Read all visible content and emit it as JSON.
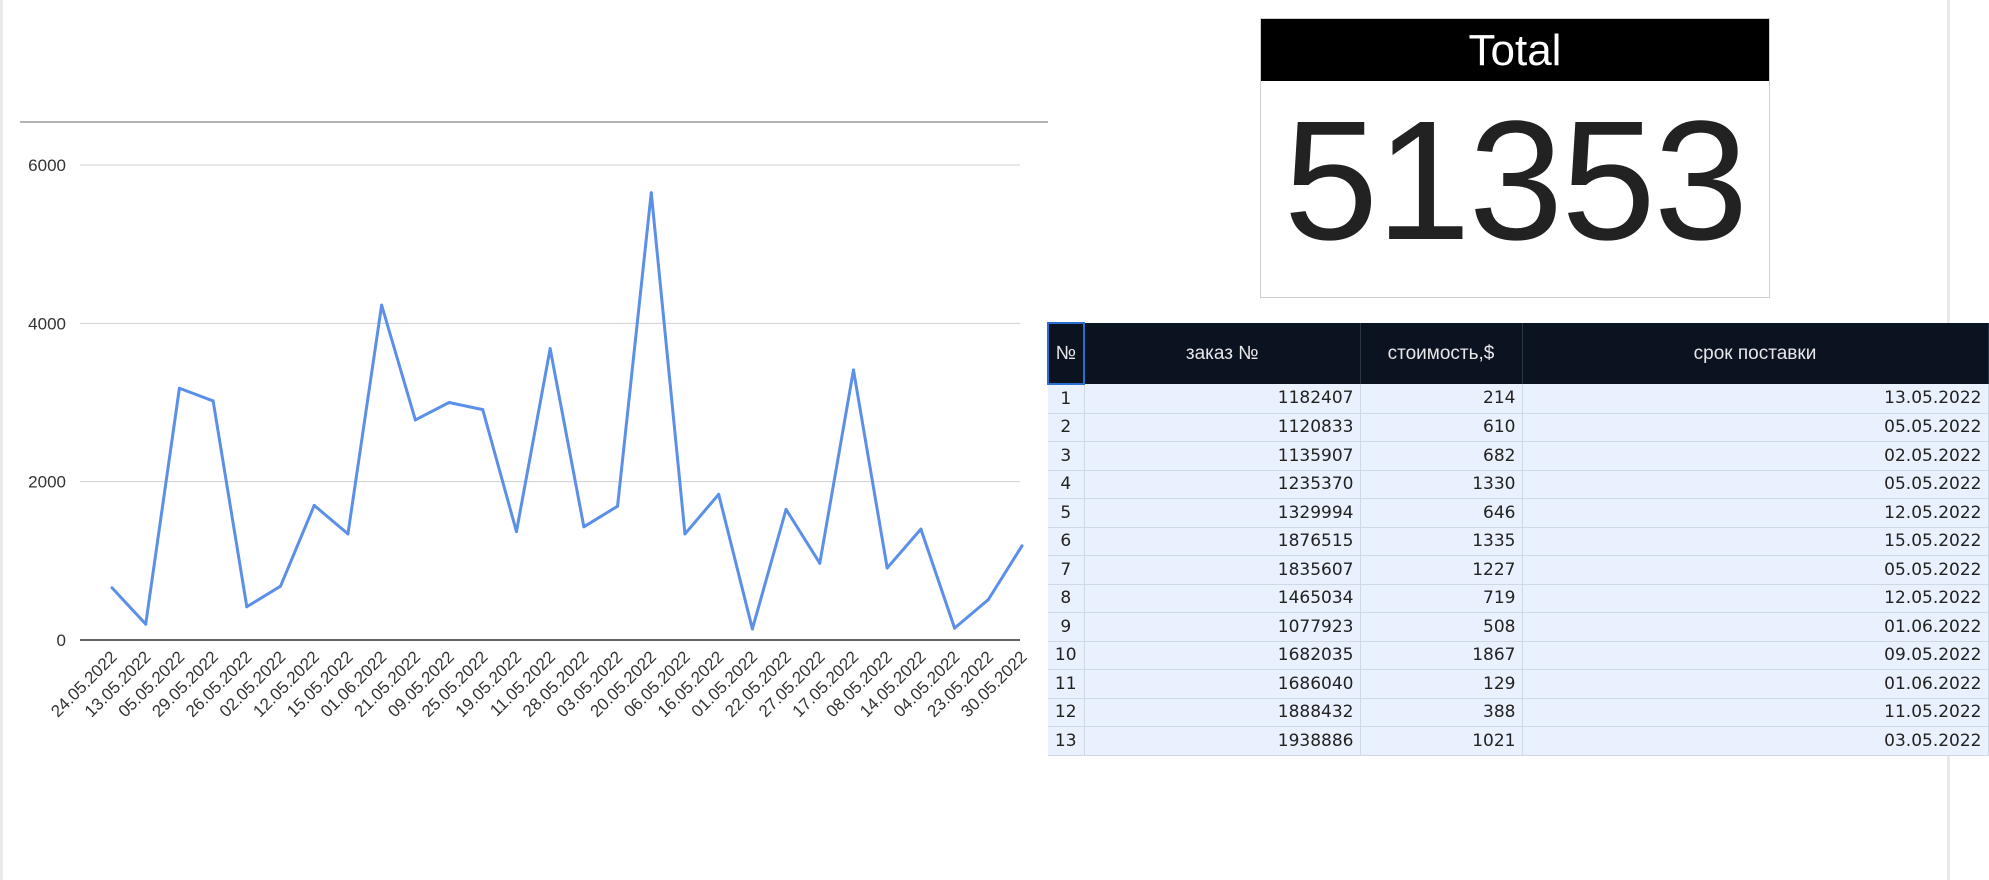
{
  "chart_data": {
    "type": "line",
    "categories": [
      "24.05.2022",
      "13.05.2022",
      "05.05.2022",
      "29.05.2022",
      "26.05.2022",
      "02.05.2022",
      "12.05.2022",
      "15.05.2022",
      "01.06.2022",
      "21.05.2022",
      "09.05.2022",
      "25.05.2022",
      "19.05.2022",
      "11.05.2022",
      "28.05.2022",
      "03.05.2022",
      "20.05.2022",
      "06.05.2022",
      "16.05.2022",
      "01.05.2022",
      "22.05.2022",
      "27.05.2022",
      "17.05.2022",
      "08.05.2022",
      "14.05.2022",
      "04.05.2022",
      "23.05.2022",
      "30.05.2022"
    ],
    "series": [
      {
        "values": [
          660,
          200,
          3180,
          3020,
          420,
          680,
          1700,
          1340,
          4230,
          2780,
          3000,
          2910,
          1370,
          3680,
          1430,
          1690,
          5650,
          1340,
          1840,
          140,
          1650,
          970,
          3410,
          910,
          1400,
          150,
          510,
          1190
        ],
        "color": "#5b8fe8"
      }
    ],
    "yticks": [
      0,
      2000,
      4000,
      6000
    ],
    "ylim": [
      0,
      6000
    ],
    "grid": true,
    "legend": "none"
  },
  "total": {
    "label": "Total",
    "value": "51353"
  },
  "table": {
    "headers": [
      "№",
      "заказ №",
      "стоимость,$",
      "срок поставки"
    ],
    "rows": [
      [
        "1",
        "1182407",
        "214",
        "13.05.2022"
      ],
      [
        "2",
        "1120833",
        "610",
        "05.05.2022"
      ],
      [
        "3",
        "1135907",
        "682",
        "02.05.2022"
      ],
      [
        "4",
        "1235370",
        "1330",
        "05.05.2022"
      ],
      [
        "5",
        "1329994",
        "646",
        "12.05.2022"
      ],
      [
        "6",
        "1876515",
        "1335",
        "15.05.2022"
      ],
      [
        "7",
        "1835607",
        "1227",
        "05.05.2022"
      ],
      [
        "8",
        "1465034",
        "719",
        "12.05.2022"
      ],
      [
        "9",
        "1077923",
        "508",
        "01.06.2022"
      ],
      [
        "10",
        "1682035",
        "1867",
        "09.05.2022"
      ],
      [
        "11",
        "1686040",
        "129",
        "01.06.2022"
      ],
      [
        "12",
        "1888432",
        "388",
        "11.05.2022"
      ],
      [
        "13",
        "1938886",
        "1021",
        "03.05.2022"
      ]
    ]
  }
}
